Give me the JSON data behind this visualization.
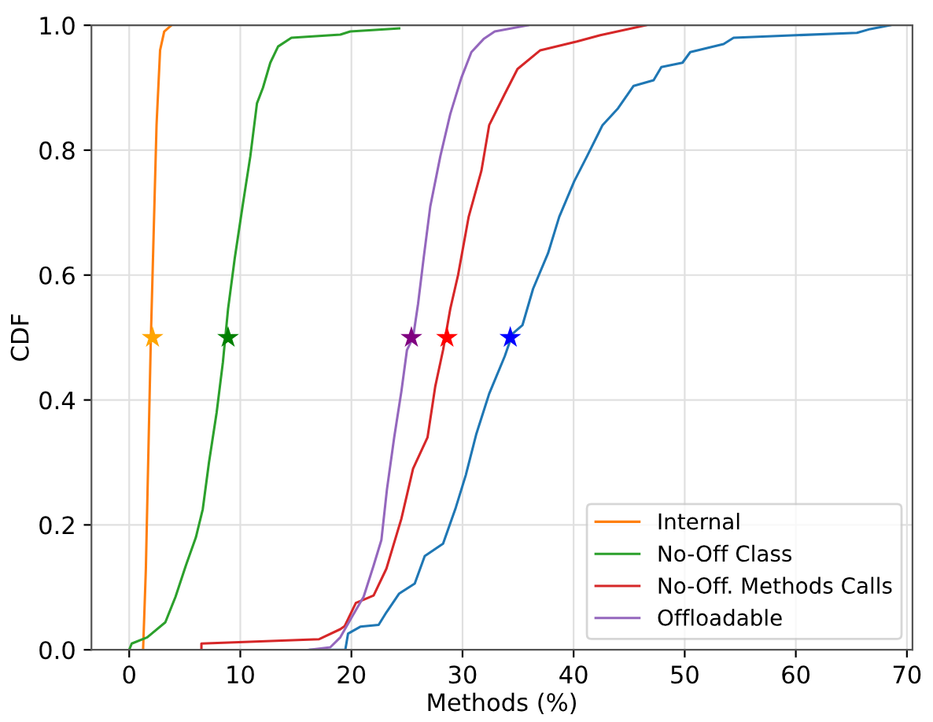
{
  "chart_data": {
    "type": "line",
    "xlabel": "Methods (%)",
    "ylabel": "CDF",
    "xlim": [
      -3.4,
      70.5
    ],
    "ylim": [
      0,
      1
    ],
    "xticks": [
      0,
      10,
      20,
      30,
      40,
      50,
      60,
      70
    ],
    "yticks": [
      {
        "value": 0,
        "label": "0.0"
      },
      {
        "value": 0.2,
        "label": "0.2"
      },
      {
        "value": 0.4,
        "label": "0.4"
      },
      {
        "value": 0.6,
        "label": "0.6"
      },
      {
        "value": 0.8,
        "label": "0.8"
      },
      {
        "value": 1,
        "label": "1.0"
      }
    ],
    "grid": true,
    "legend": "bottom right",
    "line_style": "solid",
    "series": [
      {
        "color": "#1f77b4",
        "x": [
          16.3,
          19.45,
          19.7,
          20.8,
          22.45,
          23.15,
          24.3,
          25.7,
          26.6,
          28.25,
          29.4,
          30.3,
          31.25,
          32.4,
          33.8,
          34.5,
          35.4,
          36.35,
          37.7,
          38.7,
          40.05,
          41.2,
          42.6,
          44.0,
          45.4,
          47.2,
          47.9,
          49.8,
          50.5,
          53.5,
          54.4,
          65.5,
          66.7,
          68.5
        ],
        "values": [
          0,
          0,
          0.026,
          0.037,
          0.04,
          0.06,
          0.09,
          0.106,
          0.15,
          0.17,
          0.228,
          0.28,
          0.346,
          0.41,
          0.47,
          0.506,
          0.52,
          0.578,
          0.635,
          0.693,
          0.75,
          0.79,
          0.84,
          0.867,
          0.903,
          0.912,
          0.933,
          0.94,
          0.957,
          0.97,
          0.98,
          0.988,
          0.994,
          1.0
        ]
      },
      {
        "name": "Internal",
        "color": "#ff7f0e",
        "x": [
          1.25,
          1.5,
          1.95,
          2.46,
          2.78,
          3.15,
          3.8
        ],
        "values": [
          0,
          0.13,
          0.5,
          0.84,
          0.96,
          0.99,
          1.0
        ]
      },
      {
        "name": "No-Off Class",
        "color": "#2ca02c",
        "x": [
          0,
          0.23,
          1.62,
          3.25,
          4.17,
          5.1,
          6.0,
          6.62,
          7.18,
          7.87,
          8.43,
          8.9,
          9.5,
          10.2,
          10.9,
          11.5,
          12.04,
          12.7,
          13.4,
          14.6,
          19.0,
          19.9,
          24.3
        ],
        "values": [
          0,
          0.01,
          0.02,
          0.044,
          0.085,
          0.135,
          0.18,
          0.225,
          0.3,
          0.38,
          0.46,
          0.546,
          0.627,
          0.71,
          0.79,
          0.875,
          0.9,
          0.94,
          0.966,
          0.98,
          0.985,
          0.99,
          0.995
        ]
      },
      {
        "name": "No-Off. Methods Calls",
        "color": "#d62728",
        "x": [
          6.5,
          6.5,
          17.1,
          19.0,
          19.4,
          20.4,
          22.0,
          23.15,
          24.5,
          25.55,
          26.85,
          27.55,
          28.25,
          28.9,
          29.6,
          30.55,
          31.7,
          32.4,
          33.8,
          34.95,
          37.0,
          40.3,
          42.4,
          46.5
        ],
        "values": [
          0,
          0.01,
          0.017,
          0.033,
          0.038,
          0.075,
          0.087,
          0.13,
          0.21,
          0.29,
          0.34,
          0.422,
          0.48,
          0.546,
          0.6,
          0.693,
          0.767,
          0.84,
          0.89,
          0.93,
          0.96,
          0.974,
          0.984,
          1.0
        ]
      },
      {
        "name": "Offloadable",
        "color": "#9467bd",
        "x": [
          16.2,
          18.1,
          19.0,
          19.96,
          21.1,
          22.0,
          22.7,
          23.2,
          23.85,
          24.5,
          25.0,
          25.55,
          26.0,
          26.5,
          27.1,
          28.0,
          28.9,
          29.9,
          30.8,
          31.9,
          32.9,
          35.9
        ],
        "values": [
          0,
          0.004,
          0.02,
          0.05,
          0.085,
          0.135,
          0.176,
          0.257,
          0.34,
          0.414,
          0.48,
          0.5,
          0.554,
          0.627,
          0.71,
          0.79,
          0.858,
          0.916,
          0.957,
          0.978,
          0.99,
          1.0
        ]
      },
      {
        "type": "scatter",
        "marker": "star",
        "color": "#ffa500",
        "x": [
          2.1
        ],
        "values": [
          0.5
        ]
      },
      {
        "type": "scatter",
        "marker": "star",
        "color": "#008000",
        "x": [
          8.9
        ],
        "values": [
          0.5
        ]
      },
      {
        "type": "scatter",
        "marker": "star",
        "color": "#800080",
        "x": [
          25.4
        ],
        "values": [
          0.5
        ]
      },
      {
        "type": "scatter",
        "marker": "star",
        "color": "#ff0000",
        "x": [
          28.6
        ],
        "values": [
          0.5
        ]
      },
      {
        "type": "scatter",
        "marker": "star",
        "color": "#0000ff",
        "x": [
          34.3
        ],
        "values": [
          0.5
        ]
      }
    ]
  }
}
